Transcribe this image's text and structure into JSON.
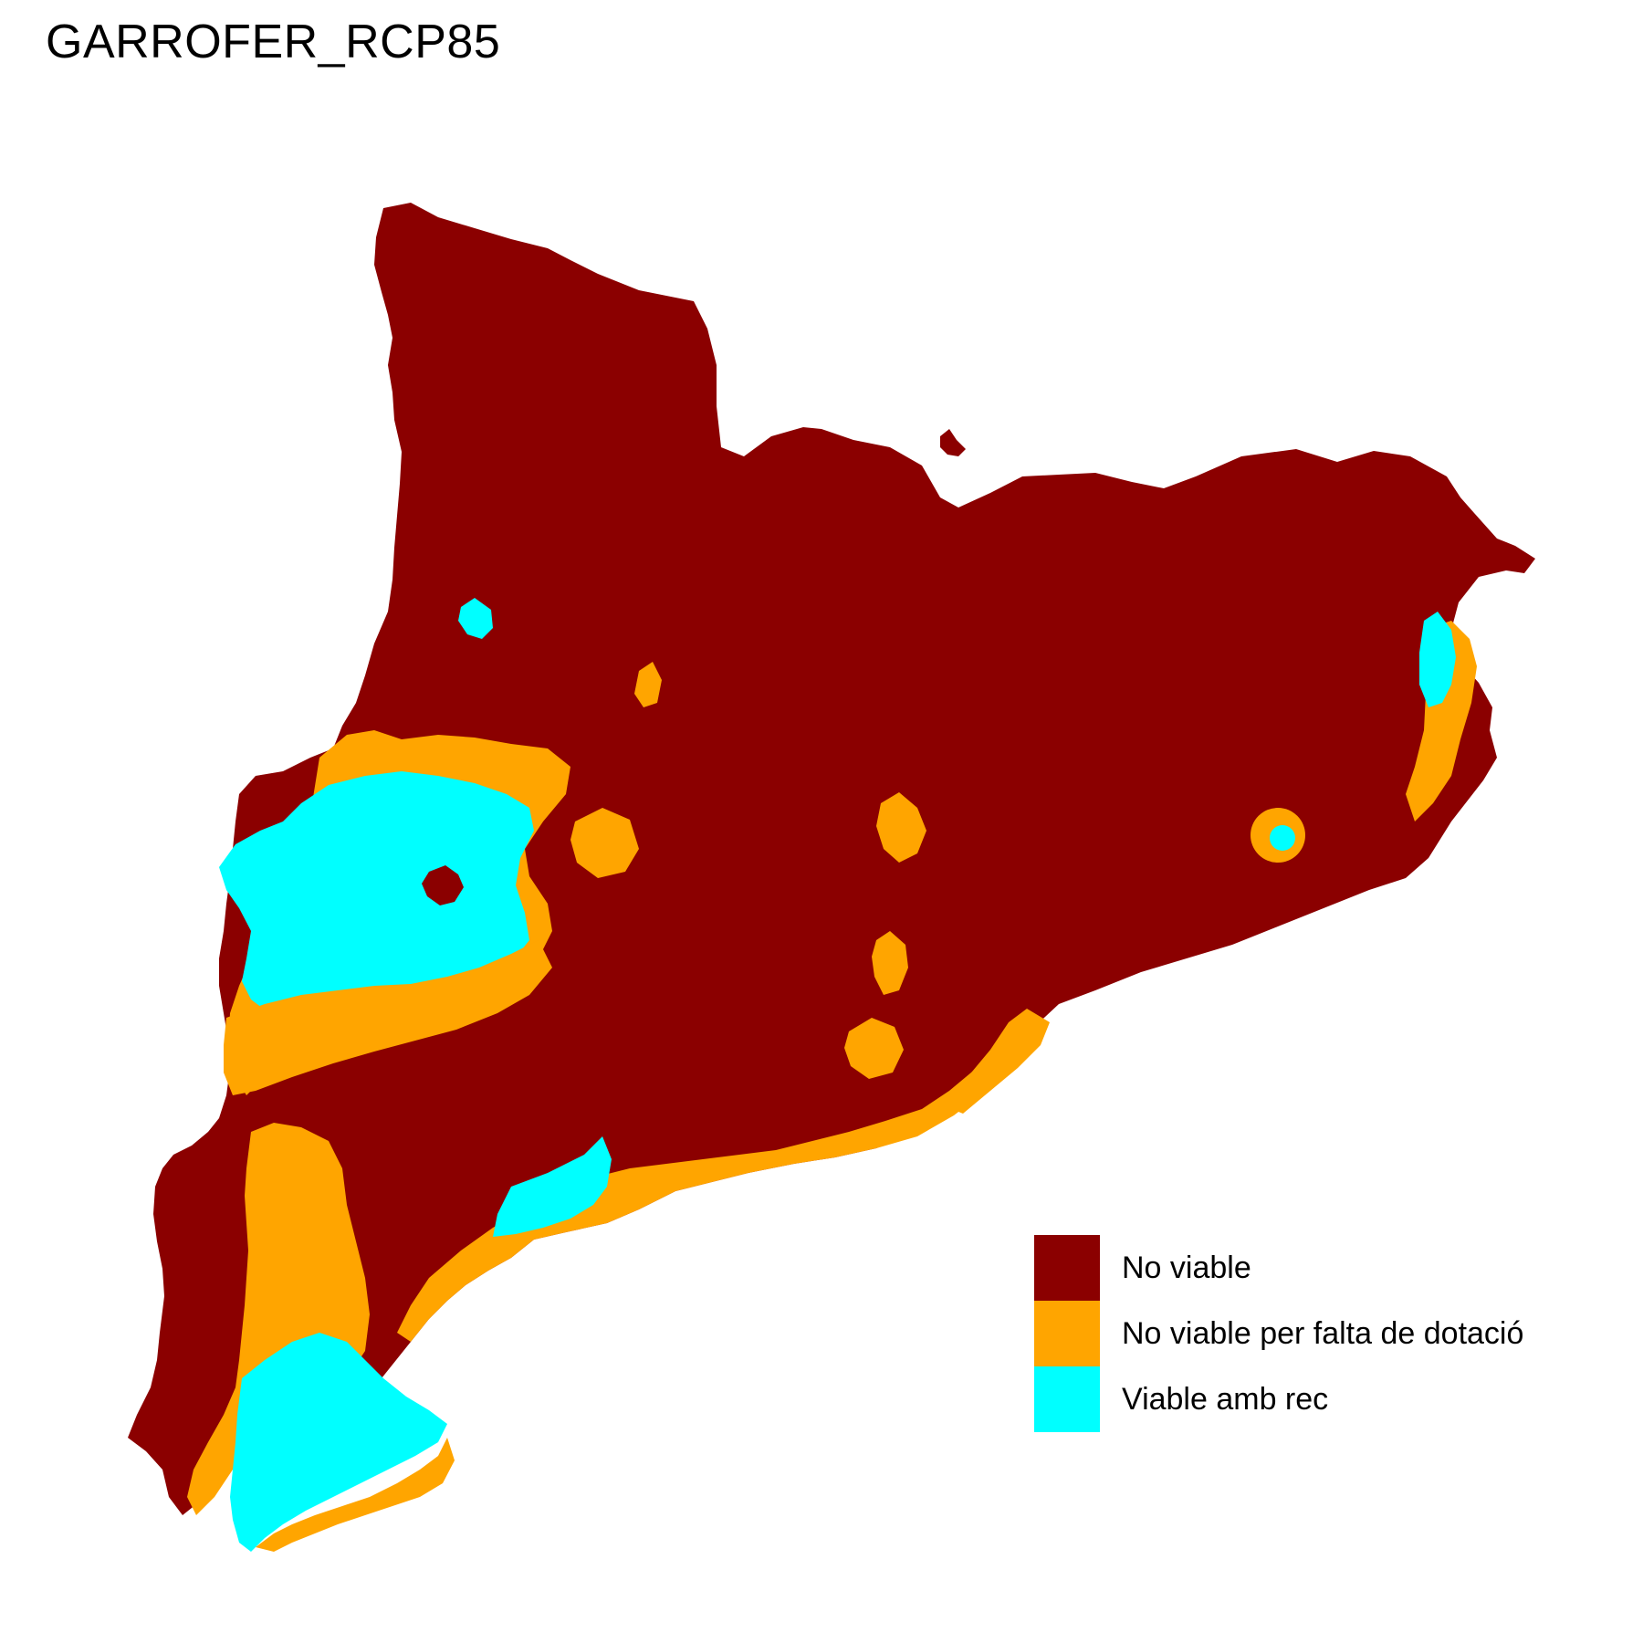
{
  "title": "GARROFER_RCP85",
  "colors": {
    "no_viable": "#8B0000",
    "no_viable_dotacio": "#FFA500",
    "viable_rec": "#00FFFF",
    "background": "#FFFFFF"
  },
  "legend": {
    "items": [
      {
        "label": "No viable",
        "color": "#8B0000"
      },
      {
        "label": "No viable per falta de dotació",
        "color": "#FFA500"
      },
      {
        "label": "Viable amb rec",
        "color": "#00FFFF"
      }
    ]
  }
}
